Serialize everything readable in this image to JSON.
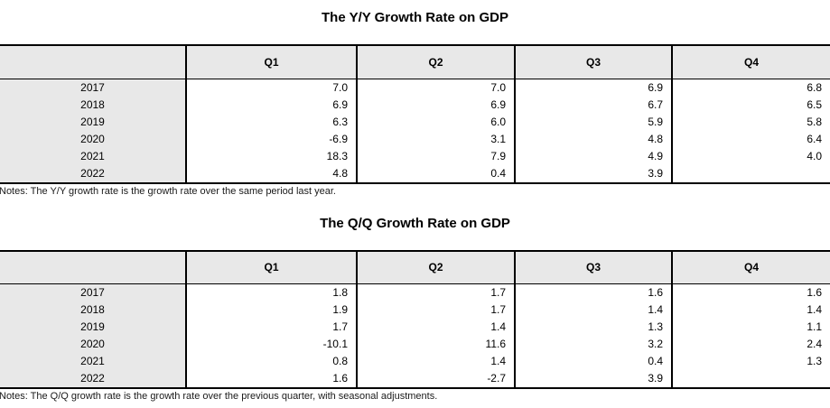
{
  "style": {
    "header_bg": "#e8e8e8",
    "border_color": "#000000",
    "text_color": "#000000"
  },
  "chart_data": [
    {
      "type": "table",
      "title": "The Y/Y Growth Rate on GDP",
      "row_header_label": "",
      "columns": [
        "Q1",
        "Q2",
        "Q3",
        "Q4"
      ],
      "rows": [
        {
          "year": "2017",
          "values": [
            "7.0",
            "7.0",
            "6.9",
            "6.8"
          ]
        },
        {
          "year": "2018",
          "values": [
            "6.9",
            "6.9",
            "6.7",
            "6.5"
          ]
        },
        {
          "year": "2019",
          "values": [
            "6.3",
            "6.0",
            "5.9",
            "5.8"
          ]
        },
        {
          "year": "2020",
          "values": [
            "-6.9",
            "3.1",
            "4.8",
            "6.4"
          ]
        },
        {
          "year": "2021",
          "values": [
            "18.3",
            "7.9",
            "4.9",
            "4.0"
          ]
        },
        {
          "year": "2022",
          "values": [
            "4.8",
            "0.4",
            "3.9",
            ""
          ]
        }
      ],
      "notes": "Notes: The Y/Y growth rate is the growth rate over the same period last year."
    },
    {
      "type": "table",
      "title": "The Q/Q Growth Rate on GDP",
      "row_header_label": "",
      "columns": [
        "Q1",
        "Q2",
        "Q3",
        "Q4"
      ],
      "rows": [
        {
          "year": "2017",
          "values": [
            "1.8",
            "1.7",
            "1.6",
            "1.6"
          ]
        },
        {
          "year": "2018",
          "values": [
            "1.9",
            "1.7",
            "1.4",
            "1.4"
          ]
        },
        {
          "year": "2019",
          "values": [
            "1.7",
            "1.4",
            "1.3",
            "1.1"
          ]
        },
        {
          "year": "2020",
          "values": [
            "-10.1",
            "11.6",
            "3.2",
            "2.4"
          ]
        },
        {
          "year": "2021",
          "values": [
            "0.8",
            "1.4",
            "0.4",
            "1.3"
          ]
        },
        {
          "year": "2022",
          "values": [
            "1.6",
            "-2.7",
            "3.9",
            ""
          ]
        }
      ],
      "notes": "Notes: The Q/Q growth rate is the growth rate over the previous quarter, with seasonal adjustments."
    }
  ]
}
